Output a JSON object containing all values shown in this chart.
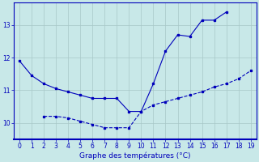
{
  "line1_x": [
    0,
    1,
    2,
    3,
    4,
    5,
    6,
    7,
    8,
    9,
    10,
    11,
    12,
    13,
    14,
    15,
    16,
    17
  ],
  "line1_y": [
    11.9,
    11.45,
    11.2,
    11.05,
    10.95,
    10.85,
    10.75,
    10.75,
    10.75,
    10.35,
    10.35,
    11.2,
    12.2,
    12.7,
    12.65,
    13.15,
    13.15,
    13.4
  ],
  "line2_x": [
    2,
    3,
    4,
    5,
    6,
    7,
    8,
    9,
    10,
    11,
    12,
    13,
    14,
    15,
    16,
    17,
    18,
    19
  ],
  "line2_y": [
    10.2,
    10.2,
    10.15,
    10.05,
    9.95,
    9.85,
    9.85,
    9.85,
    10.35,
    10.55,
    10.65,
    10.75,
    10.85,
    10.95,
    11.1,
    11.2,
    11.35,
    11.6
  ],
  "xlabel": "Graphe des températures (°C)",
  "xlim": [
    -0.5,
    19.5
  ],
  "ylim": [
    9.5,
    13.7
  ],
  "yticks": [
    10,
    11,
    12,
    13
  ],
  "xticks": [
    0,
    1,
    2,
    3,
    4,
    5,
    6,
    7,
    8,
    9,
    10,
    11,
    12,
    13,
    14,
    15,
    16,
    17,
    18,
    19
  ],
  "line_color": "#0000bb",
  "bg_color": "#c8e8e8",
  "plot_bg_color": "#c8e8e8",
  "grid_color": "#a8c8c8"
}
